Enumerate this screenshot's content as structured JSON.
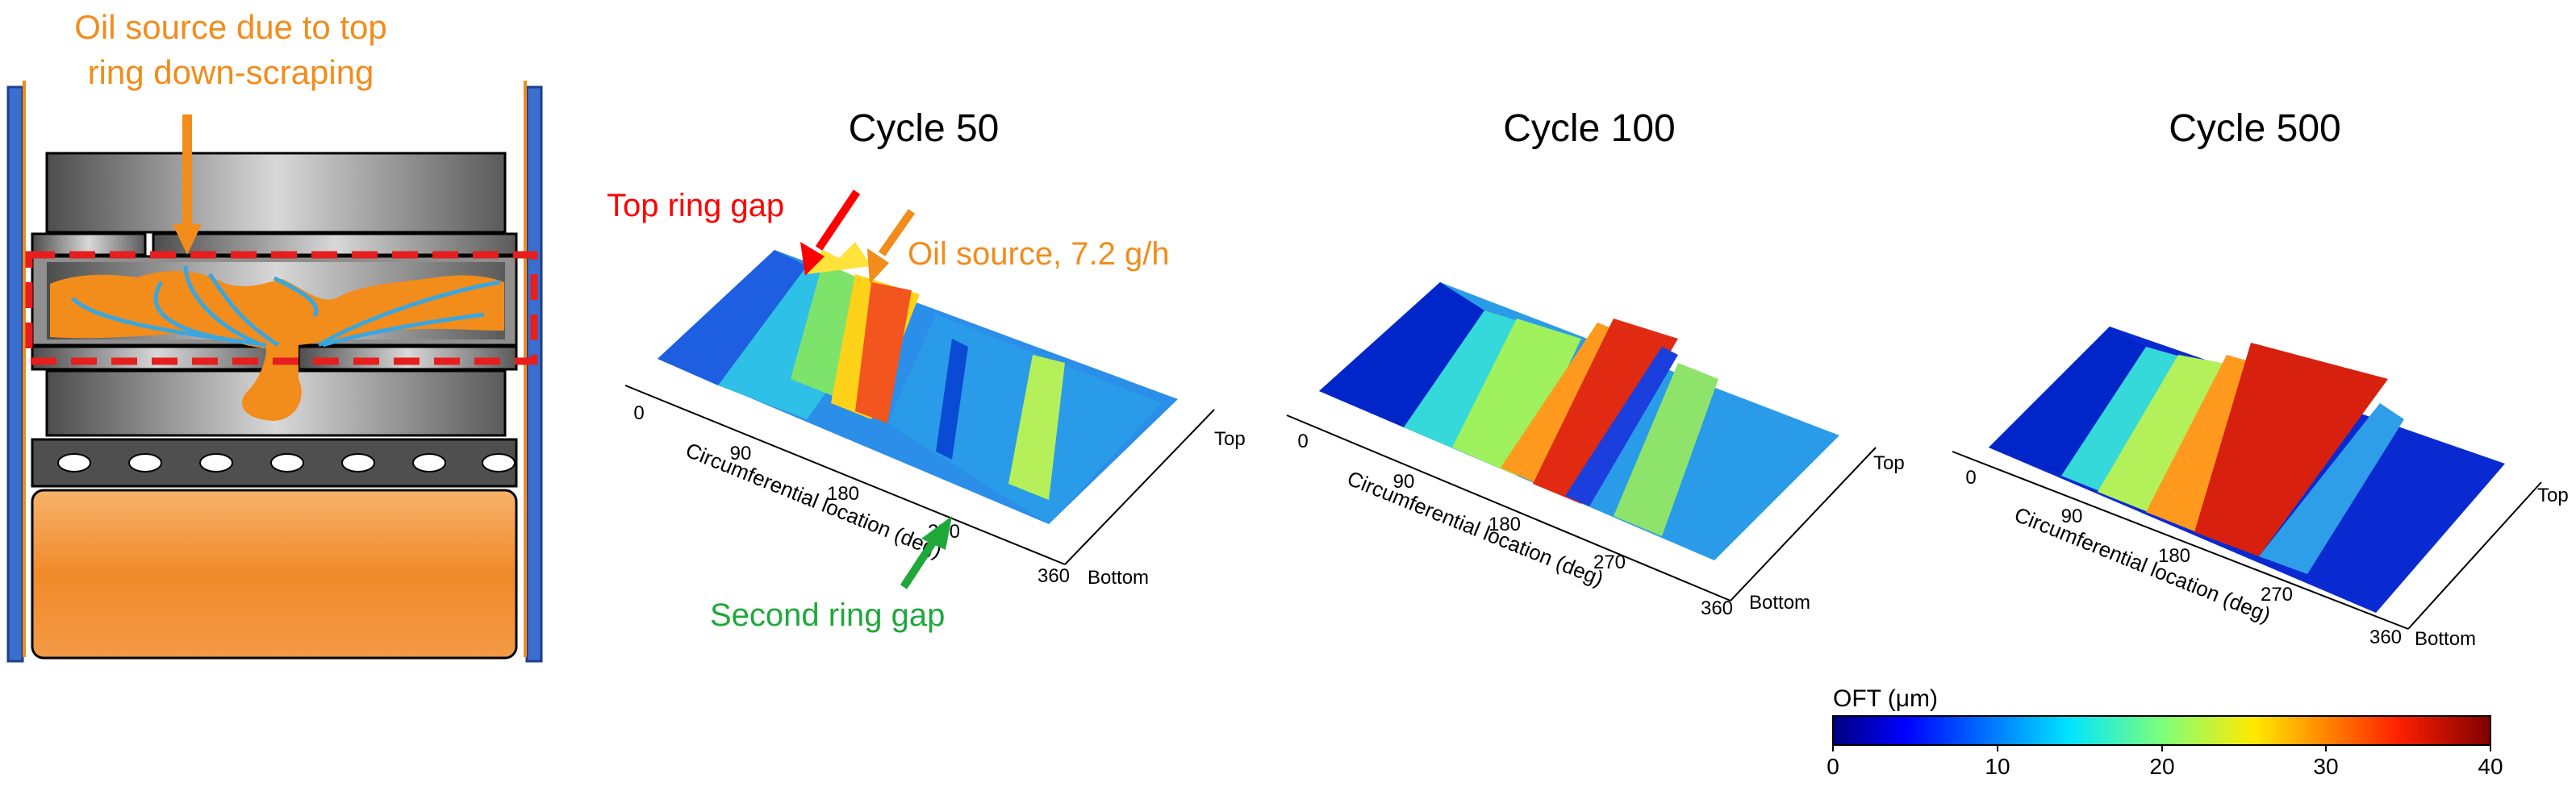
{
  "schematic": {
    "oil_source_label_line1": "Oil source due to top",
    "oil_source_label_line2": "ring down-scraping"
  },
  "plots": [
    {
      "title": "Cycle 50"
    },
    {
      "title": "Cycle 100"
    },
    {
      "title": "Cycle 500"
    }
  ],
  "axis": {
    "x_label": "Circumferential location (deg)",
    "x_ticks": [
      "0",
      "90",
      "180",
      "270",
      "360"
    ],
    "y_top": "Top",
    "y_bottom": "Bottom"
  },
  "annotations": {
    "top_ring_gap": "Top ring gap",
    "oil_source": "Oil source, 7.2 g/h",
    "second_ring_gap": "Second ring gap"
  },
  "colorbar": {
    "label": "OFT (μm)",
    "ticks": [
      "0",
      "10",
      "20",
      "30",
      "40"
    ]
  },
  "colors": {
    "orange": "#f28c1b",
    "red": "#ff0000",
    "green": "#1fa83a",
    "blue_rail": "#3a6fd0",
    "flow_blue": "#3aa6e0"
  }
}
